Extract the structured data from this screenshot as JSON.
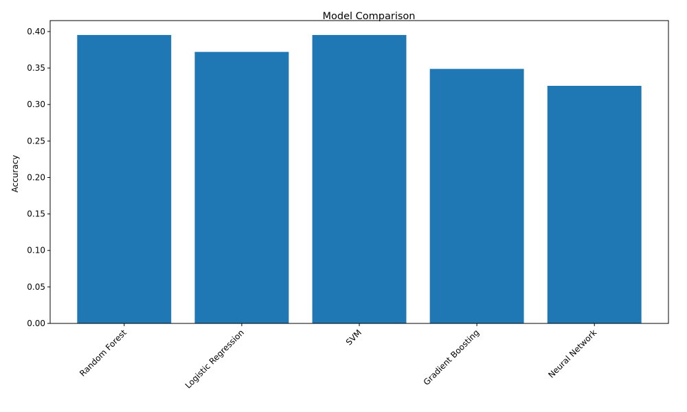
{
  "chart_data": {
    "type": "bar",
    "title": "Model Comparison",
    "xlabel": "",
    "ylabel": "Accuracy",
    "categories": [
      "Random Forest",
      "Logistic Regression",
      "SVM",
      "Gradient Boosting",
      "Neural Network"
    ],
    "values": [
      0.3953,
      0.3721,
      0.3953,
      0.3488,
      0.3256
    ],
    "ylim": [
      0,
      0.415
    ],
    "yticks": [
      "0.00",
      "0.05",
      "0.10",
      "0.15",
      "0.20",
      "0.25",
      "0.30",
      "0.35",
      "0.40"
    ],
    "x_tick_rotation_deg": 45,
    "grid": false,
    "legend": "none",
    "bar_color": "#1f77b4"
  }
}
